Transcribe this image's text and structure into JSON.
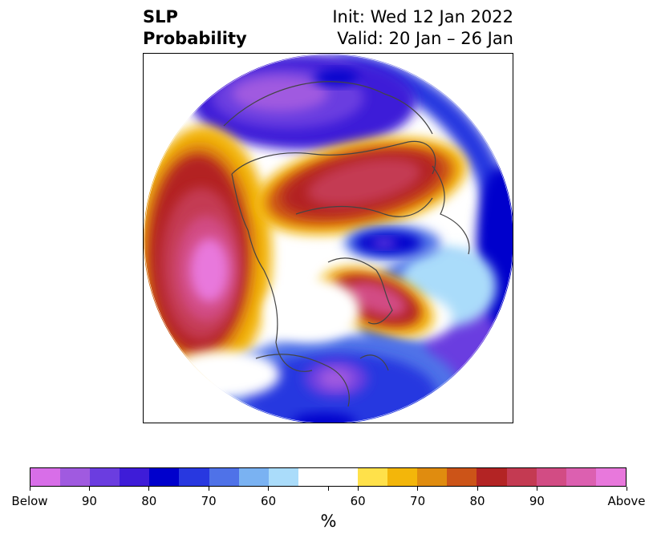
{
  "title": {
    "left_line1": "SLP",
    "left_line2": "Probability",
    "right_line1": "Init: Wed 12 Jan 2022",
    "right_line2": "Valid: 20 Jan – 26 Jan"
  },
  "map": {
    "projection": "polar-stereographic-north",
    "regions": [
      {
        "name": "pacific-above-center",
        "color": "#e46edd"
      },
      {
        "name": "europe-siberia-above",
        "color": "#c93d55"
      },
      {
        "name": "hudson-bay-above",
        "color": "#d45aa0"
      },
      {
        "name": "greenland-below",
        "color": "#2b38e0"
      },
      {
        "name": "east-asia-below",
        "color": "#9050e0"
      },
      {
        "name": "southeast-us-below",
        "color": "#8a58d8"
      },
      {
        "name": "north-atlantic-below",
        "color": "#0000cc"
      }
    ]
  },
  "colorbar": {
    "colors": [
      "#d86ee8",
      "#a05ae0",
      "#6b3de0",
      "#3e1cd8",
      "#0000cc",
      "#2838e0",
      "#4f72e8",
      "#7ab2f2",
      "#aadcfa",
      "#ffffff",
      "#ffffff",
      "#ffe14a",
      "#f3b60a",
      "#e08c0f",
      "#cc5418",
      "#b32424",
      "#c43a52",
      "#d24c84",
      "#dc60b0",
      "#e878dc"
    ],
    "tick_labels": [
      "Below",
      "90",
      "80",
      "70",
      "60",
      "60",
      "70",
      "80",
      "90",
      "Above"
    ],
    "unit": "%"
  }
}
